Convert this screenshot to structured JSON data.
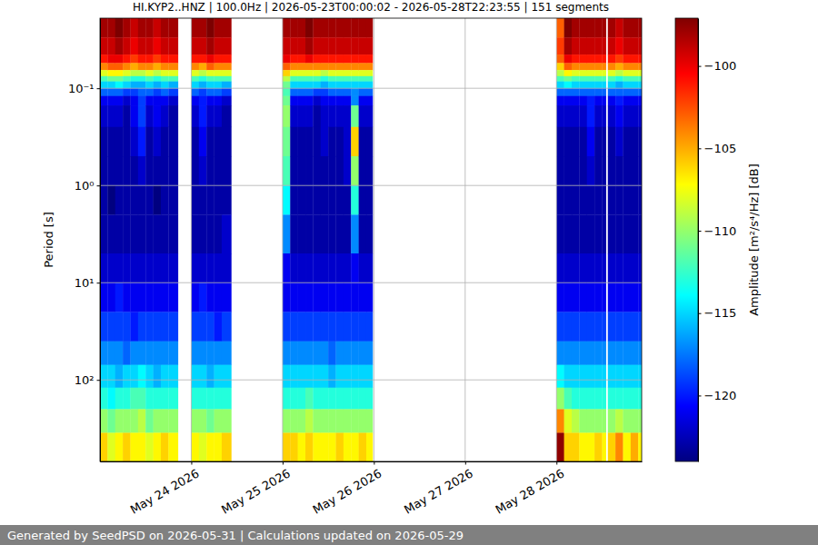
{
  "chart_data": {
    "type": "heatmap",
    "title": "HI.KYP2..HNZ | 100.0Hz | 2026-05-23T00:00:02 - 2026-05-28T22:23:55 | 151 segments",
    "ylabel": "Period [s]",
    "annotations": [
      "Generated by SeedPSD on 2026-05-31 | Calculations updated on 2026-05-29"
    ],
    "log": "y",
    "grid": true,
    "color": "jet",
    "xlim": [
      "2026-05-23T00:00:02",
      "2026-05-28T22:23:55"
    ],
    "xticks": [
      {
        "value": "2026-05-24T00:00:00",
        "label": "May 24 2026"
      },
      {
        "value": "2026-05-25T00:00:00",
        "label": "May 25 2026"
      },
      {
        "value": "2026-05-26T00:00:00",
        "label": "May 26 2026"
      },
      {
        "value": "2026-05-27T00:00:00",
        "label": "May 27 2026"
      },
      {
        "value": "2026-05-28T00:00:00",
        "label": "May 28 2026"
      }
    ],
    "ylim": [
      0.019,
      690
    ],
    "yticks": [
      {
        "value": 0.1,
        "label": "10⁻¹"
      },
      {
        "value": 1,
        "label": "10⁰"
      },
      {
        "value": 10,
        "label": "10¹"
      },
      {
        "value": 100,
        "label": "10²"
      }
    ],
    "colorbar": {
      "label": "Amplitude [m²/s⁴/Hz] [dB]",
      "range": [
        -124,
        -97.1
      ],
      "ticks": [
        {
          "value": -120,
          "label": "−120"
        },
        {
          "value": -115,
          "label": "−115"
        },
        {
          "value": -110,
          "label": "−110"
        },
        {
          "value": -105,
          "label": "−105"
        },
        {
          "value": -100,
          "label": "−100"
        }
      ]
    },
    "y_edges": [
      0.019,
      0.03,
      0.045,
      0.055,
      0.065,
      0.075,
      0.085,
      0.1,
      0.12,
      0.15,
      0.25,
      0.5,
      1,
      2,
      5,
      10,
      20,
      40,
      70,
      120,
      200,
      350,
      690
    ],
    "x": [
      "2026-05-23T00:00:02",
      "2026-05-23T02:00:00",
      "2026-05-23T04:00:00",
      "2026-05-23T06:00:00",
      "2026-05-23T08:00:00",
      "2026-05-23T10:00:00",
      "2026-05-23T12:00:00",
      "2026-05-23T14:00:00",
      "2026-05-23T16:00:00",
      "2026-05-23T18:00:00",
      "2026-05-24T00:00:00",
      "2026-05-24T02:00:00",
      "2026-05-24T04:00:00",
      "2026-05-24T06:00:00",
      "2026-05-24T08:00:00",
      "2026-05-25T00:00:00",
      "2026-05-25T02:00:00",
      "2026-05-25T04:00:00",
      "2026-05-25T06:00:00",
      "2026-05-25T08:00:00",
      "2026-05-25T10:00:00",
      "2026-05-25T12:00:00",
      "2026-05-25T14:00:00",
      "2026-05-25T16:00:00",
      "2026-05-25T18:00:00",
      "2026-05-25T20:00:00",
      "2026-05-25T22:00:00",
      "2026-05-28T00:00:00",
      "2026-05-28T02:00:00",
      "2026-05-28T04:00:00",
      "2026-05-28T06:00:00",
      "2026-05-28T08:00:00",
      "2026-05-28T10:00:00",
      "2026-05-28T12:00:00",
      "2026-05-28T13:30:00",
      "2026-05-28T15:30:00",
      "2026-05-28T17:30:00",
      "2026-05-28T19:30:00",
      "2026-05-28T21:30:00"
    ],
    "x_end": [
      "2026-05-23T02:00:00",
      "2026-05-23T04:00:00",
      "2026-05-23T06:00:00",
      "2026-05-23T08:00:00",
      "2026-05-23T10:00:00",
      "2026-05-23T12:00:00",
      "2026-05-23T14:00:00",
      "2026-05-23T16:00:00",
      "2026-05-23T18:00:00",
      "2026-05-23T20:30:00",
      "2026-05-24T02:00:00",
      "2026-05-24T04:00:00",
      "2026-05-24T06:00:00",
      "2026-05-24T08:00:00",
      "2026-05-24T10:30:00",
      "2026-05-25T02:00:00",
      "2026-05-25T04:00:00",
      "2026-05-25T06:00:00",
      "2026-05-25T08:00:00",
      "2026-05-25T10:00:00",
      "2026-05-25T12:00:00",
      "2026-05-25T14:00:00",
      "2026-05-25T16:00:00",
      "2026-05-25T18:00:00",
      "2026-05-25T20:00:00",
      "2026-05-25T22:00:00",
      "2026-05-25T23:40:00",
      "2026-05-28T02:00:00",
      "2026-05-28T04:00:00",
      "2026-05-28T06:00:00",
      "2026-05-28T08:00:00",
      "2026-05-28T10:00:00",
      "2026-05-28T12:00:00",
      "2026-05-28T13:00:00",
      "2026-05-28T15:30:00",
      "2026-05-28T17:30:00",
      "2026-05-28T19:30:00",
      "2026-05-28T21:30:00",
      "2026-05-28T22:23:55"
    ],
    "cells": [
      [
        -98,
        -99,
        -101,
        -104,
        -108,
        -112,
        -115,
        -118,
        -121,
        -122,
        -123,
        -123,
        -123,
        -123,
        -122,
        -121,
        -119,
        -117,
        -115,
        -113,
        -110,
        -106
      ],
      [
        -98,
        -99,
        -100,
        -103,
        -107,
        -111,
        -115,
        -118,
        -121,
        -122,
        -123,
        -123,
        -124,
        -123,
        -122,
        -121,
        -119,
        -117,
        -115,
        -114,
        -111,
        -108
      ],
      [
        -97,
        -98,
        -100,
        -103,
        -107,
        -111,
        -114,
        -118,
        -121,
        -122,
        -123,
        -123,
        -123,
        -123,
        -122,
        -120,
        -119,
        -117,
        -116,
        -113,
        -110,
        -107
      ],
      [
        -98,
        -99,
        -101,
        -104,
        -108,
        -112,
        -115,
        -119,
        -122,
        -123,
        -123,
        -123,
        -123,
        -123,
        -122,
        -121,
        -119,
        -118,
        -115,
        -113,
        -110,
        -106
      ],
      [
        -99,
        -100,
        -102,
        -105,
        -109,
        -113,
        -116,
        -119,
        -121,
        -121,
        -122,
        -123,
        -123,
        -123,
        -122,
        -121,
        -120,
        -117,
        -115,
        -112,
        -110,
        -107
      ],
      [
        -98,
        -99,
        -101,
        -104,
        -109,
        -113,
        -116,
        -118,
        -119,
        -119,
        -120,
        -122,
        -123,
        -123,
        -122,
        -121,
        -119,
        -117,
        -114,
        -112,
        -109,
        -107
      ],
      [
        -98,
        -99,
        -101,
        -104,
        -108,
        -112,
        -115,
        -118,
        -121,
        -122,
        -123,
        -123,
        -123,
        -123,
        -122,
        -121,
        -119,
        -117,
        -115,
        -113,
        -111,
        -108
      ],
      [
        -99,
        -100,
        -102,
        -105,
        -109,
        -113,
        -116,
        -119,
        -121,
        -121,
        -122,
        -123,
        -124,
        -123,
        -122,
        -121,
        -119,
        -117,
        -116,
        -113,
        -110,
        -107
      ],
      [
        -98,
        -99,
        -101,
        -104,
        -108,
        -112,
        -115,
        -118,
        -121,
        -122,
        -123,
        -123,
        -123,
        -123,
        -122,
        -121,
        -119,
        -117,
        -115,
        -113,
        -110,
        -106
      ],
      [
        -98,
        -99,
        -101,
        -104,
        -108,
        -112,
        -116,
        -119,
        -122,
        -123,
        -123,
        -123,
        -123,
        -123,
        -122,
        -121,
        -119,
        -117,
        -115,
        -113,
        -110,
        -107
      ],
      [
        -98,
        -99,
        -101,
        -104,
        -108,
        -112,
        -115,
        -118,
        -121,
        -122,
        -123,
        -123,
        -123,
        -123,
        -122,
        -121,
        -119,
        -117,
        -115,
        -113,
        -110,
        -107
      ],
      [
        -98,
        -99,
        -101,
        -105,
        -109,
        -113,
        -116,
        -119,
        -120,
        -120,
        -121,
        -122,
        -123,
        -123,
        -122,
        -120,
        -119,
        -117,
        -115,
        -113,
        -110,
        -108
      ],
      [
        -97,
        -98,
        -100,
        -103,
        -108,
        -112,
        -115,
        -118,
        -121,
        -122,
        -123,
        -123,
        -123,
        -123,
        -122,
        -121,
        -119,
        -117,
        -116,
        -113,
        -111,
        -107
      ],
      [
        -98,
        -99,
        -101,
        -104,
        -108,
        -112,
        -115,
        -118,
        -121,
        -122,
        -123,
        -123,
        -123,
        -123,
        -122,
        -121,
        -120,
        -117,
        -115,
        -113,
        -110,
        -107
      ],
      [
        -98,
        -99,
        -101,
        -104,
        -108,
        -112,
        -116,
        -119,
        -122,
        -123,
        -123,
        -123,
        -123,
        -122,
        -122,
        -121,
        -119,
        -117,
        -115,
        -113,
        -110,
        -106
      ],
      [
        -98,
        -99,
        -100,
        -103,
        -106,
        -109,
        -111,
        -112,
        -111,
        -110,
        -111,
        -112,
        -114,
        -117,
        -121,
        -121,
        -119,
        -117,
        -115,
        -113,
        -110,
        -106
      ],
      [
        -98,
        -99,
        -101,
        -104,
        -108,
        -112,
        -115,
        -118,
        -121,
        -122,
        -123,
        -123,
        -123,
        -123,
        -122,
        -121,
        -119,
        -117,
        -115,
        -113,
        -110,
        -106
      ],
      [
        -98,
        -99,
        -101,
        -104,
        -108,
        -112,
        -115,
        -118,
        -121,
        -122,
        -123,
        -123,
        -123,
        -123,
        -122,
        -121,
        -119,
        -117,
        -115,
        -113,
        -110,
        -107
      ],
      [
        -97,
        -98,
        -100,
        -104,
        -108,
        -112,
        -115,
        -118,
        -121,
        -122,
        -123,
        -123,
        -123,
        -123,
        -122,
        -121,
        -119,
        -117,
        -115,
        -112,
        -109,
        -106
      ],
      [
        -98,
        -99,
        -101,
        -104,
        -108,
        -112,
        -115,
        -119,
        -122,
        -123,
        -123,
        -123,
        -123,
        -123,
        -122,
        -121,
        -119,
        -117,
        -115,
        -113,
        -110,
        -107
      ],
      [
        -98,
        -99,
        -101,
        -104,
        -109,
        -113,
        -116,
        -119,
        -121,
        -122,
        -122,
        -123,
        -123,
        -123,
        -122,
        -121,
        -119,
        -117,
        -115,
        -113,
        -110,
        -107
      ],
      [
        -98,
        -99,
        -101,
        -104,
        -108,
        -112,
        -115,
        -118,
        -121,
        -122,
        -123,
        -123,
        -123,
        -123,
        -122,
        -121,
        -119,
        -118,
        -116,
        -113,
        -110,
        -107
      ],
      [
        -98,
        -99,
        -101,
        -104,
        -108,
        -112,
        -115,
        -118,
        -121,
        -122,
        -123,
        -123,
        -123,
        -123,
        -122,
        -121,
        -119,
        -117,
        -115,
        -113,
        -110,
        -106
      ],
      [
        -98,
        -99,
        -101,
        -104,
        -108,
        -112,
        -115,
        -118,
        -121,
        -122,
        -122,
        -122,
        -123,
        -123,
        -122,
        -121,
        -119,
        -117,
        -115,
        -113,
        -110,
        -107
      ],
      [
        -98,
        -99,
        -101,
        -104,
        -108,
        -112,
        -115,
        -117,
        -117,
        -111,
        -106,
        -110,
        -113,
        -117,
        -121,
        -121,
        -119,
        -117,
        -115,
        -113,
        -110,
        -107
      ],
      [
        -98,
        -99,
        -101,
        -104,
        -108,
        -112,
        -115,
        -118,
        -121,
        -122,
        -123,
        -123,
        -123,
        -123,
        -122,
        -121,
        -119,
        -117,
        -115,
        -113,
        -110,
        -106
      ],
      [
        -98,
        -99,
        -101,
        -104,
        -108,
        -112,
        -115,
        -118,
        -121,
        -122,
        -123,
        -123,
        -123,
        -123,
        -122,
        -121,
        -119,
        -117,
        -115,
        -113,
        -110,
        -107
      ],
      [
        -103,
        -102,
        -103,
        -106,
        -109,
        -112,
        -115,
        -118,
        -121,
        -122,
        -123,
        -123,
        -123,
        -123,
        -122,
        -121,
        -119,
        -117,
        -114,
        -110,
        -104,
        -97.5
      ],
      [
        -97,
        -98,
        -100,
        -103,
        -107,
        -111,
        -114,
        -118,
        -121,
        -122,
        -123,
        -123,
        -123,
        -123,
        -122,
        -121,
        -119,
        -117,
        -115,
        -112,
        -108,
        -106
      ],
      [
        -98,
        -99,
        -101,
        -104,
        -108,
        -112,
        -115,
        -118,
        -121,
        -122,
        -123,
        -123,
        -123,
        -123,
        -122,
        -121,
        -119,
        -117,
        -115,
        -113,
        -109,
        -106
      ],
      [
        -98,
        -99,
        -101,
        -104,
        -108,
        -112,
        -115,
        -118,
        -121,
        -122,
        -123,
        -123,
        -123,
        -123,
        -122,
        -121,
        -119,
        -117,
        -115,
        -113,
        -110,
        -107
      ],
      [
        -98,
        -99,
        -101,
        -104,
        -108,
        -112,
        -115,
        -118,
        -120,
        -120,
        -121,
        -122,
        -123,
        -123,
        -122,
        -121,
        -119,
        -117,
        -115,
        -113,
        -110,
        -107
      ],
      [
        -98,
        -99,
        -101,
        -104,
        -108,
        -112,
        -115,
        -118,
        -121,
        -122,
        -123,
        -123,
        -123,
        -123,
        -122,
        -121,
        -119,
        -117,
        -115,
        -113,
        -110,
        -106
      ],
      [
        -98,
        -99,
        -101,
        -104,
        -108,
        -112,
        -115,
        -118,
        -121,
        -122,
        -123,
        -123,
        -123,
        -123,
        -122,
        -121,
        -119,
        -117,
        -115,
        -113,
        -110,
        -107
      ],
      [
        -98,
        -99,
        -101,
        -104,
        -108,
        -112,
        -115,
        -118,
        -121,
        -122,
        -123,
        -123,
        -123,
        -123,
        -122,
        -121,
        -119,
        -117,
        -115,
        -113,
        -110,
        -106
      ],
      [
        -99,
        -100,
        -102,
        -105,
        -109,
        -113,
        -116,
        -118,
        -120,
        -121,
        -122,
        -123,
        -123,
        -123,
        -122,
        -121,
        -119,
        -117,
        -115,
        -113,
        -109,
        -104
      ],
      [
        -98,
        -99,
        -101,
        -104,
        -108,
        -112,
        -115,
        -118,
        -121,
        -122,
        -123,
        -123,
        -123,
        -123,
        -122,
        -121,
        -119,
        -117,
        -115,
        -113,
        -110,
        -107
      ],
      [
        -98,
        -99,
        -101,
        -104,
        -108,
        -112,
        -115,
        -118,
        -121,
        -122,
        -123,
        -123,
        -123,
        -123,
        -122,
        -121,
        -119,
        -117,
        -115,
        -113,
        -110,
        -105
      ],
      [
        -98,
        -99,
        -101,
        -104,
        -108,
        -112,
        -115,
        -118,
        -121,
        -122,
        -123,
        -123,
        -123,
        -123,
        -122,
        -121,
        -119,
        -117,
        -115,
        -113,
        -110,
        -107
      ]
    ]
  }
}
